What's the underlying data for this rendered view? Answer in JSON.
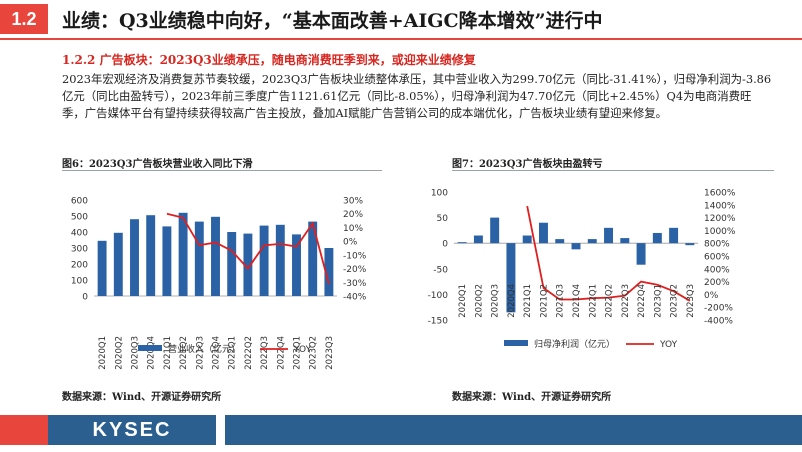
{
  "header": {
    "section_number": "1.2",
    "title": "业绩：Q3业绩稳中向好，“基本面改善+AIGC降本增效”进行中"
  },
  "subheading": "1.2.2 广告板块：2023Q3业绩承压，随电商消费旺季到来，或迎来业绩修复",
  "paragraph": "2023年宏观经济及消费复苏节奏较缓，2023Q3广告板块业绩整体承压，其中营业收入为299.70亿元（同比-31.41%），归母净利润为-3.86亿元（同比由盈转亏），2023年前三季度广告1121.61亿元（同比-8.05%），归母净利润为47.70亿元（同比+2.45%）Q4为电商消费旺季，广告媒体平台有望持续获得较高广告主投放，叠加AI赋能广告营销公司的成本端优化，广告板块业绩有望迎来修复。",
  "figures": [
    {
      "title": "图6：2023Q3广告板块营业收入同比下滑",
      "source": "数据来源：Wind、开源证券研究所"
    },
    {
      "title": "图7：2023Q3广告板块由盈转亏",
      "source": "数据来源：Wind、开源证券研究所"
    }
  ],
  "footer": {
    "logo": "KYSEC"
  },
  "colors": {
    "accent": "#e8453c",
    "bar": "#2a62a5",
    "line": "#e01f1f",
    "brand_blue": "#2a5f8f"
  },
  "chart_data": [
    {
      "type": "bar",
      "title": "图6：2023Q3广告板块营业收入同比下滑",
      "categories": [
        "2020Q1",
        "2020Q2",
        "2020Q3",
        "2020Q4",
        "2021Q1",
        "2021Q2",
        "2021Q3",
        "2021Q4",
        "2022Q1",
        "2022Q2",
        "2022Q3",
        "2022Q4",
        "2023Q1",
        "2023Q2",
        "2023Q3"
      ],
      "series": [
        {
          "name": "营业收入（亿元）",
          "type": "bar",
          "axis": "left",
          "values": [
            345,
            395,
            480,
            505,
            435,
            520,
            465,
            495,
            400,
            390,
            440,
            445,
            385,
            465,
            300
          ]
        },
        {
          "name": "YOY",
          "type": "line",
          "axis": "right",
          "values": [
            null,
            null,
            null,
            null,
            20,
            17,
            -3,
            -1,
            -7,
            -20,
            -3,
            -2,
            -4,
            13,
            -31.41
          ]
        }
      ],
      "left_axis": {
        "ylim": [
          0,
          600
        ],
        "ticks": [
          0,
          100,
          200,
          300,
          400,
          500,
          600
        ]
      },
      "right_axis": {
        "ylim": [
          -40,
          30
        ],
        "ticks": [
          "30%",
          "20%",
          "10%",
          "0%",
          "-10%",
          "-20%",
          "-30%",
          "-40%"
        ]
      },
      "legend": "bottom"
    },
    {
      "type": "bar",
      "title": "图7：2023Q3广告板块由盈转亏",
      "categories": [
        "2020Q1",
        "2020Q2",
        "2020Q3",
        "2020Q4",
        "2021Q1",
        "2021Q2",
        "2021Q3",
        "2021Q4",
        "2022Q1",
        "2022Q2",
        "2022Q3",
        "2022Q4",
        "2023Q1",
        "2023Q2",
        "2023Q3"
      ],
      "series": [
        {
          "name": "归母净利润（亿元）",
          "type": "bar",
          "axis": "left",
          "values": [
            2,
            15,
            50,
            -135,
            15,
            40,
            8,
            -12,
            8,
            30,
            10,
            -42,
            20,
            30,
            -3.86
          ]
        },
        {
          "name": "YOY",
          "type": "line",
          "axis": "right",
          "values": [
            null,
            null,
            null,
            null,
            1380,
            100,
            -80,
            -80,
            -60,
            -50,
            -20,
            200,
            150,
            50,
            -100
          ]
        }
      ],
      "left_axis": {
        "ylim": [
          -150,
          100
        ],
        "ticks": [
          -150,
          -100,
          -50,
          0,
          50,
          100
        ]
      },
      "right_axis": {
        "ylim": [
          -400,
          1600
        ],
        "ticks": [
          "1600%",
          "1400%",
          "1200%",
          "1000%",
          "800%",
          "600%",
          "400%",
          "200%",
          "0%",
          "-200%",
          "-400%"
        ]
      },
      "legend": "bottom"
    }
  ]
}
